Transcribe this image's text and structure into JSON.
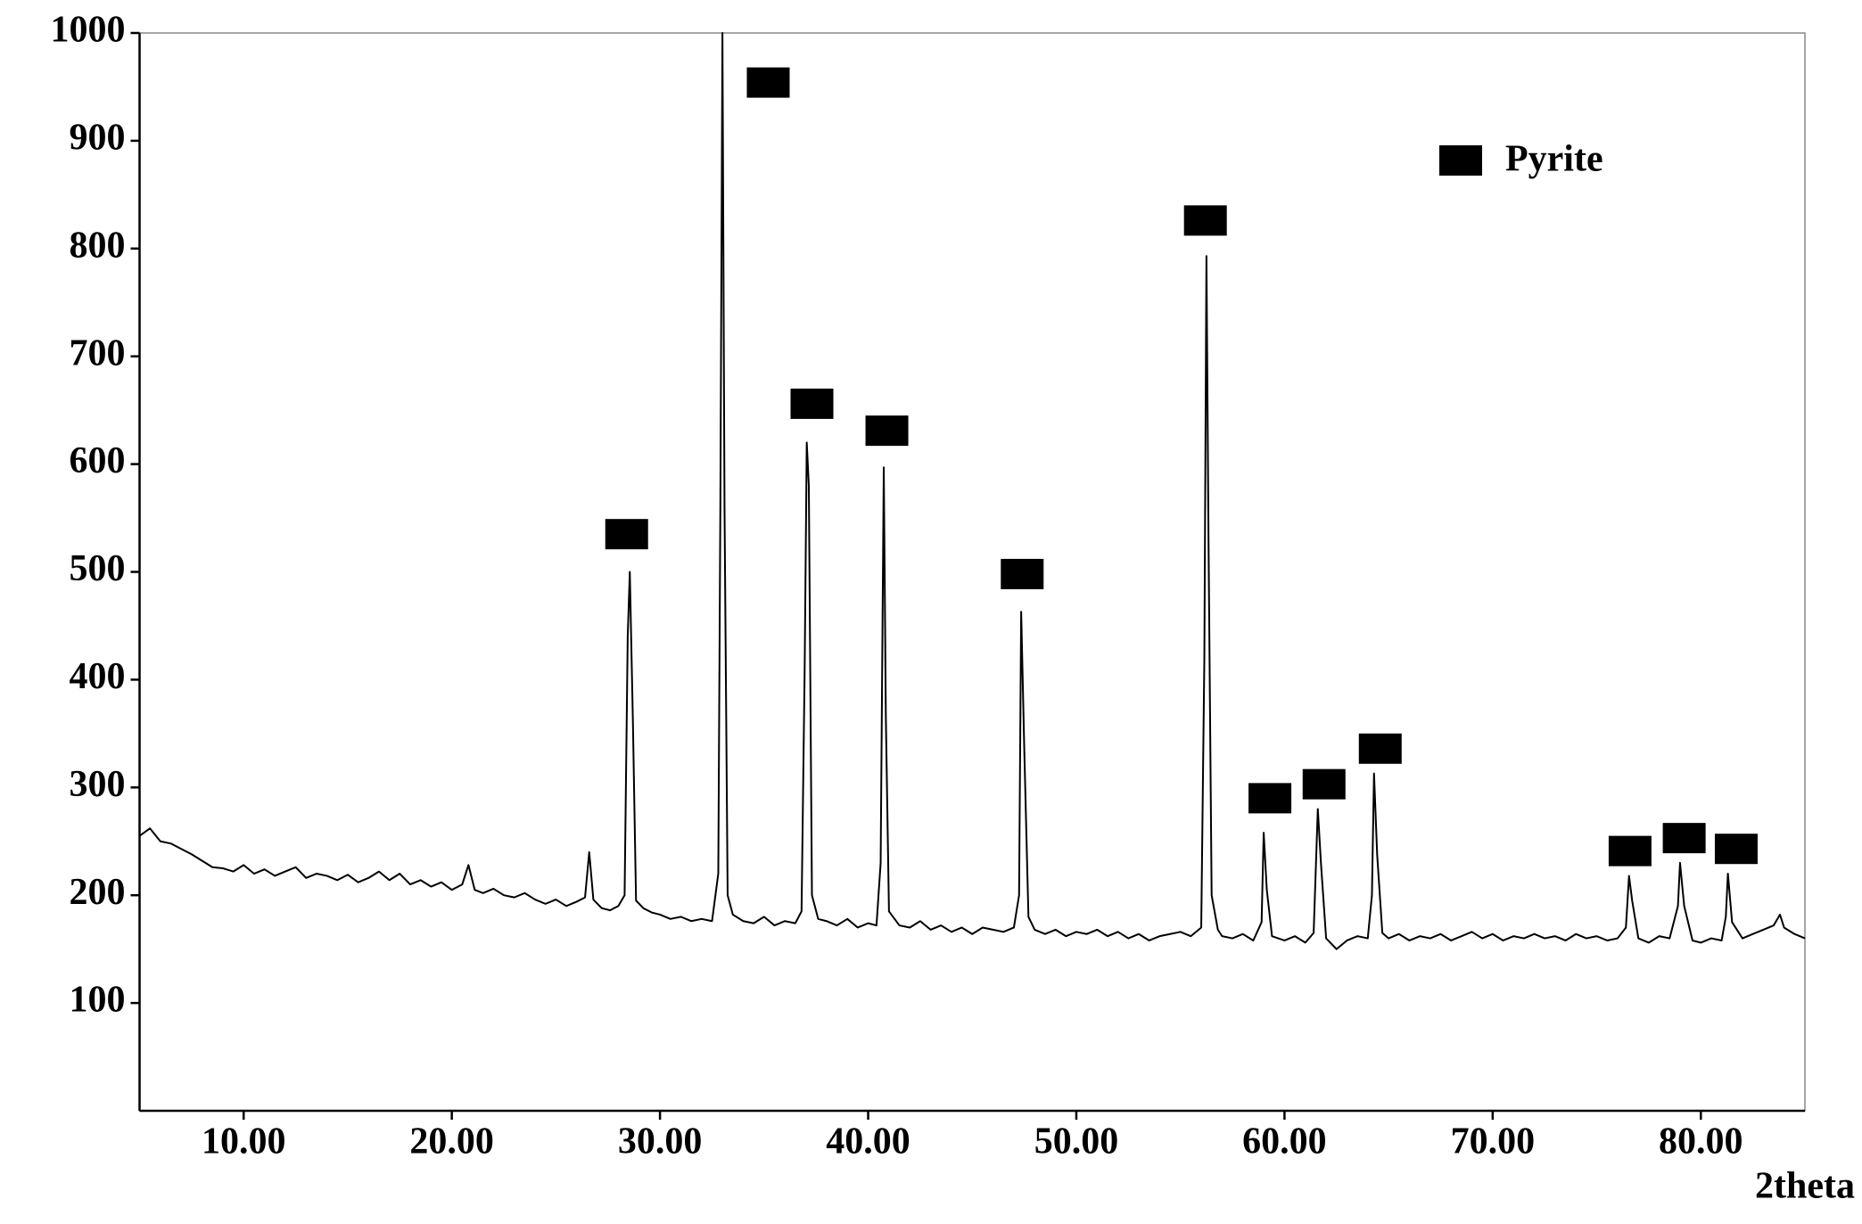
{
  "chart_data": {
    "type": "line",
    "x_label": "2theta",
    "xlim": [
      5,
      85
    ],
    "ylim": [
      0,
      1000
    ],
    "xticks": [
      {
        "value": 10,
        "label": "10.00"
      },
      {
        "value": 20,
        "label": "20.00"
      },
      {
        "value": 30,
        "label": "30.00"
      },
      {
        "value": 40,
        "label": "40.00"
      },
      {
        "value": 50,
        "label": "50.00"
      },
      {
        "value": 60,
        "label": "60.00"
      },
      {
        "value": 70,
        "label": "70.00"
      },
      {
        "value": 80,
        "label": "80.00"
      }
    ],
    "yticks": [
      100,
      200,
      300,
      400,
      500,
      600,
      700,
      800,
      900,
      1000
    ],
    "legend": "upper right",
    "series": [
      {
        "color": "#000000",
        "x": [
          5,
          5.5,
          6,
          6.5,
          7,
          7.5,
          8,
          8.5,
          9,
          9.5,
          10,
          10.5,
          11,
          11.5,
          12,
          12.5,
          13,
          13.5,
          14,
          14.5,
          15,
          15.5,
          16,
          16.5,
          17,
          17.5,
          18,
          18.5,
          19,
          19.5,
          20,
          20.5,
          20.8,
          21.1,
          21.5,
          22,
          22.5,
          23,
          23.5,
          24,
          24.5,
          25,
          25.5,
          26,
          26.4,
          26.6,
          26.8,
          27.2,
          27.6,
          28,
          28.3,
          28.45,
          28.55,
          28.7,
          28.85,
          29.2,
          29.6,
          30,
          30.5,
          31,
          31.5,
          32,
          32.5,
          32.8,
          32.9,
          33.0,
          33.1,
          33.25,
          33.5,
          34,
          34.5,
          35,
          35.5,
          36,
          36.5,
          36.8,
          36.95,
          37.05,
          37.15,
          37.3,
          37.6,
          38,
          38.5,
          39,
          39.5,
          40,
          40.4,
          40.6,
          40.75,
          40.85,
          41.0,
          41.5,
          42,
          42.5,
          43,
          43.5,
          44,
          44.5,
          45,
          45.5,
          46,
          46.5,
          47,
          47.25,
          47.35,
          47.5,
          47.7,
          48,
          48.5,
          49,
          49.5,
          50,
          50.5,
          51,
          51.5,
          52,
          52.5,
          53,
          53.5,
          54,
          54.5,
          55,
          55.5,
          56,
          56.15,
          56.25,
          56.35,
          56.5,
          56.8,
          57,
          57.5,
          58,
          58.5,
          58.9,
          59.0,
          59.15,
          59.4,
          60,
          60.5,
          61,
          61.4,
          61.6,
          61.75,
          62.0,
          62.5,
          63,
          63.5,
          64,
          64.2,
          64.3,
          64.45,
          64.7,
          65,
          65.5,
          66,
          66.5,
          67,
          67.5,
          68,
          68.5,
          69,
          69.5,
          70,
          70.5,
          71,
          71.5,
          72,
          72.5,
          73,
          73.5,
          74,
          74.5,
          75,
          75.5,
          76,
          76.4,
          76.55,
          76.7,
          77,
          77.5,
          78,
          78.5,
          78.9,
          79.0,
          79.2,
          79.6,
          80,
          80.5,
          81,
          81.2,
          81.3,
          81.5,
          82,
          82.5,
          83,
          83.5,
          83.8,
          84,
          84.5,
          85
        ],
        "values": [
          255,
          262,
          250,
          248,
          243,
          238,
          232,
          226,
          225,
          222,
          228,
          220,
          224,
          218,
          222,
          226,
          216,
          220,
          218,
          214,
          219,
          212,
          216,
          222,
          214,
          220,
          210,
          214,
          208,
          212,
          205,
          210,
          228,
          205,
          202,
          206,
          200,
          198,
          202,
          196,
          192,
          196,
          190,
          194,
          198,
          240,
          196,
          188,
          186,
          190,
          200,
          440,
          500,
          360,
          195,
          188,
          184,
          182,
          178,
          180,
          176,
          178,
          176,
          220,
          560,
          1000,
          560,
          200,
          182,
          176,
          174,
          180,
          172,
          176,
          174,
          185,
          410,
          620,
          580,
          200,
          178,
          176,
          172,
          178,
          170,
          174,
          172,
          230,
          597,
          365,
          185,
          172,
          170,
          176,
          168,
          172,
          166,
          170,
          164,
          170,
          168,
          166,
          170,
          200,
          463,
          335,
          180,
          168,
          164,
          168,
          162,
          166,
          164,
          168,
          162,
          166,
          160,
          164,
          158,
          162,
          164,
          166,
          162,
          170,
          420,
          793,
          530,
          200,
          168,
          162,
          160,
          164,
          158,
          175,
          258,
          205,
          162,
          158,
          162,
          156,
          165,
          280,
          230,
          160,
          150,
          158,
          162,
          160,
          200,
          313,
          238,
          165,
          160,
          164,
          158,
          162,
          160,
          164,
          158,
          162,
          166,
          160,
          164,
          158,
          162,
          160,
          164,
          160,
          162,
          158,
          164,
          160,
          162,
          158,
          160,
          170,
          218,
          195,
          160,
          156,
          162,
          160,
          190,
          230,
          190,
          158,
          156,
          160,
          158,
          180,
          220,
          175,
          160,
          164,
          168,
          172,
          182,
          170,
          164,
          160
        ]
      }
    ],
    "markers": {
      "name": "Pyrite",
      "color": "#000000",
      "x": [
        28.4,
        35.2,
        37.3,
        40.9,
        47.4,
        56.2,
        59.3,
        61.9,
        64.6,
        76.6,
        79.2,
        81.7
      ],
      "values": [
        535,
        954,
        656,
        631,
        498,
        826,
        290,
        303,
        336,
        241,
        253,
        243
      ]
    }
  }
}
